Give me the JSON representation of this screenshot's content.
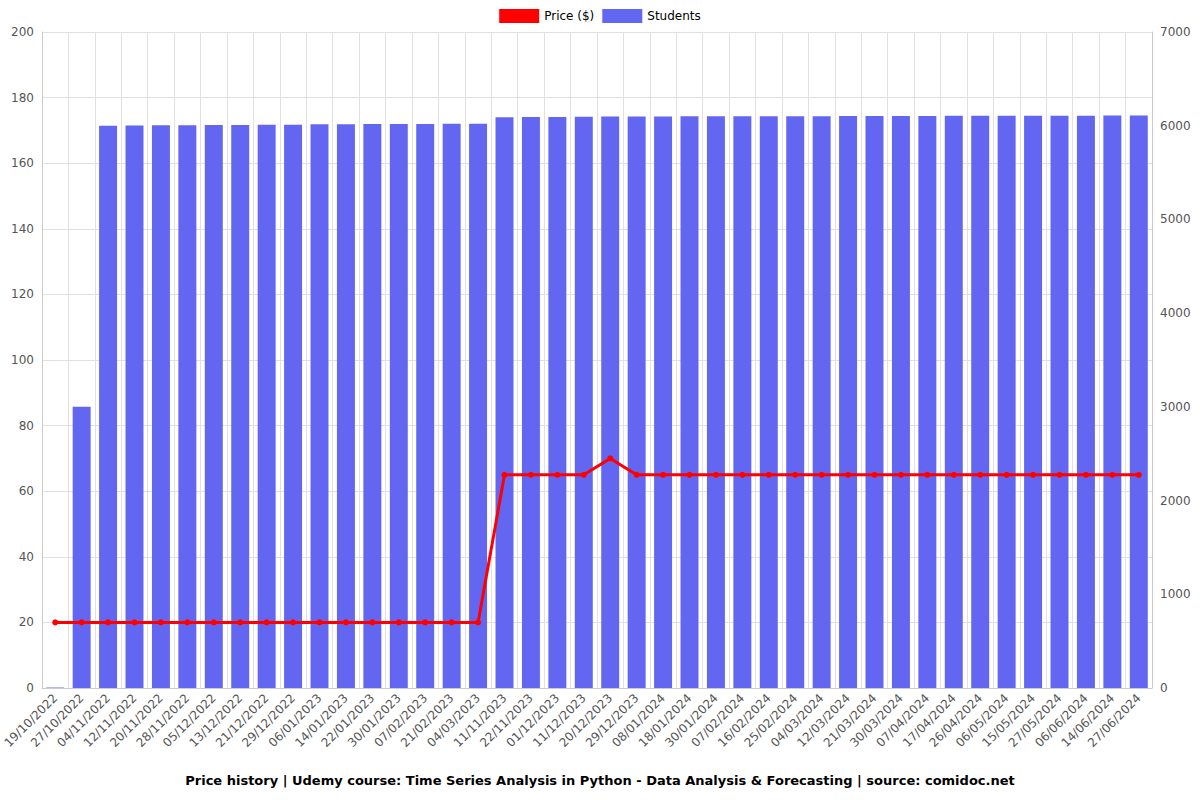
{
  "chart_data": {
    "type": "bar",
    "title": "Price history | Udemy course: Time Series Analysis in Python - Data Analysis & Forecasting | source: comidoc.net",
    "categories": [
      "19/10/2022",
      "27/10/2022",
      "04/11/2022",
      "12/11/2022",
      "20/11/2022",
      "28/11/2022",
      "05/12/2022",
      "13/12/2022",
      "21/12/2022",
      "29/12/2022",
      "06/01/2023",
      "14/01/2023",
      "22/01/2023",
      "30/01/2023",
      "07/02/2023",
      "21/02/2023",
      "04/03/2023",
      "11/11/2023",
      "22/11/2023",
      "01/12/2023",
      "11/12/2023",
      "20/12/2023",
      "29/12/2023",
      "08/01/2024",
      "18/01/2024",
      "30/01/2024",
      "07/02/2024",
      "16/02/2024",
      "25/02/2024",
      "04/03/2024",
      "12/03/2024",
      "21/03/2024",
      "30/03/2024",
      "07/04/2024",
      "17/04/2024",
      "26/04/2024",
      "06/05/2024",
      "15/05/2024",
      "27/05/2024",
      "06/06/2024",
      "14/06/2024",
      "27/06/2024"
    ],
    "series": [
      {
        "name": "Price ($)",
        "type": "line",
        "color": "#ff0000",
        "marker": "circle",
        "line_style": "solid",
        "values": [
          20,
          20,
          20,
          20,
          20,
          20,
          20,
          20,
          20,
          20,
          20,
          20,
          20,
          20,
          20,
          20,
          20,
          65,
          65,
          65,
          65,
          70,
          65,
          65,
          65,
          65,
          65,
          65,
          65,
          65,
          65,
          65,
          65,
          65,
          65,
          65,
          65,
          65,
          65,
          65,
          65,
          65
        ]
      },
      {
        "name": "Students",
        "type": "bar",
        "color": "#6366f1",
        "axis": "y2",
        "values": [
          5,
          3000,
          6000,
          6002,
          6005,
          6006,
          6007,
          6008,
          6009,
          6010,
          6015,
          6016,
          6017,
          6018,
          6019,
          6020,
          6021,
          6090,
          6092,
          6094,
          6096,
          6097,
          6098,
          6099,
          6100,
          6100,
          6101,
          6101,
          6102,
          6102,
          6103,
          6103,
          6104,
          6104,
          6105,
          6105,
          6106,
          6106,
          6107,
          6107,
          6108,
          6108
        ]
      }
    ],
    "ylim": [
      0,
      200
    ],
    "yticks": [
      0,
      20,
      40,
      60,
      80,
      100,
      120,
      140,
      160,
      180,
      200
    ],
    "y2lim": [
      0,
      7000
    ],
    "y2ticks": [
      0,
      1000,
      2000,
      3000,
      4000,
      5000,
      6000,
      7000
    ],
    "grid": true,
    "legend": "top"
  }
}
